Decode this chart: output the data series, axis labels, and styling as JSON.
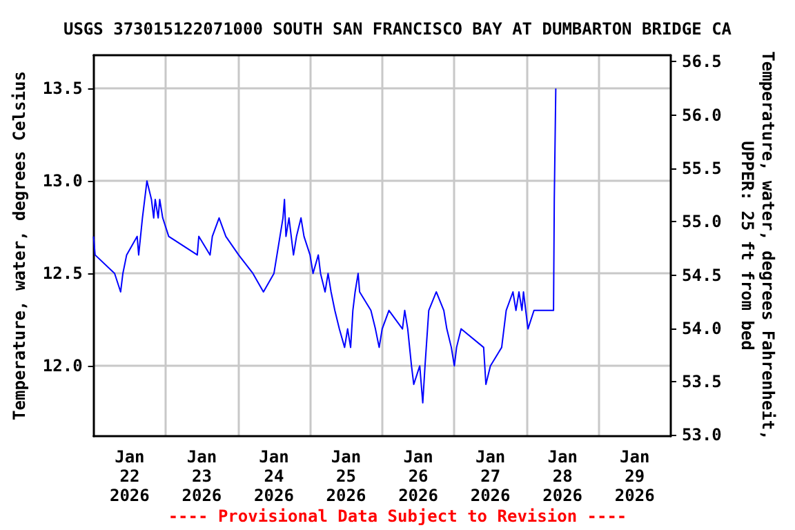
{
  "chart_data": {
    "type": "line",
    "title": "USGS 373015122071000 SOUTH SAN FRANCISCO BAY AT DUMBARTON BRIDGE CA",
    "ylabel": "Temperature, water, degrees Celsius",
    "y2label": "Temperature, water, degrees Fahrenheit,\nUPPER: 25 ft from bed",
    "annotations": [
      "---- Provisional Data Subject to Revision ----"
    ],
    "xlim": [
      "2026-01-22",
      "2026-01-30"
    ],
    "xticks": [
      {
        "value": "2026-01-22T12:00",
        "label": "Jan\n22\n2026"
      },
      {
        "value": "2026-01-23T12:00",
        "label": "Jan\n23\n2026"
      },
      {
        "value": "2026-01-24T12:00",
        "label": "Jan\n24\n2026"
      },
      {
        "value": "2026-01-25T12:00",
        "label": "Jan\n25\n2026"
      },
      {
        "value": "2026-01-26T12:00",
        "label": "Jan\n26\n2026"
      },
      {
        "value": "2026-01-27T12:00",
        "label": "Jan\n27\n2026"
      },
      {
        "value": "2026-01-28T12:00",
        "label": "Jan\n28\n2026"
      },
      {
        "value": "2026-01-29T12:00",
        "label": "Jan\n29\n2026"
      },
      {
        "value": "2026-01-23",
        "label": null
      },
      {
        "value": "2026-01-24",
        "label": null
      },
      {
        "value": "2026-01-25",
        "label": null
      },
      {
        "value": "2026-01-26",
        "label": null
      },
      {
        "value": "2026-01-27",
        "label": null
      },
      {
        "value": "2026-01-28",
        "label": null
      },
      {
        "value": "2026-01-29",
        "label": null
      }
    ],
    "ylim": [
      11.62,
      13.68
    ],
    "yticks": [
      {
        "value": 12,
        "label": "12.0"
      },
      12.5,
      {
        "value": 13,
        "label": "13.0"
      },
      13.5
    ],
    "y2lim": [
      52.99,
      56.56
    ],
    "y2ticks": [
      {
        "value": 53,
        "label": "53.0"
      },
      53.5,
      {
        "value": 54,
        "label": "54.0"
      },
      54.5,
      {
        "value": 55,
        "label": "55.0"
      },
      55.5,
      {
        "value": 56,
        "label": "56.0"
      },
      56.5
    ],
    "grid": true,
    "series": [
      {
        "color": "#0000ff",
        "x": [
          "2026-01-22T00:00",
          "2026-01-22T00:30",
          "2026-01-22T07:00",
          "2026-01-22T09:00",
          "2026-01-22T09:45",
          "2026-01-22T11:00",
          "2026-01-22T14:30",
          "2026-01-22T15:00",
          "2026-01-22T16:15",
          "2026-01-22T17:00",
          "2026-01-22T17:45",
          "2026-01-22T19:15",
          "2026-01-22T20:00",
          "2026-01-22T20:30",
          "2026-01-22T21:30",
          "2026-01-22T22:00",
          "2026-01-22T23:00",
          "2026-01-23T01:00",
          "2026-01-23T10:30",
          "2026-01-23T11:00",
          "2026-01-23T14:45",
          "2026-01-23T15:30",
          "2026-01-23T17:45",
          "2026-01-23T20:00",
          "2026-01-24T00:15",
          "2026-01-24T05:00",
          "2026-01-24T08:30",
          "2026-01-24T12:00",
          "2026-01-24T13:00",
          "2026-01-24T14:00",
          "2026-01-24T15:00",
          "2026-01-24T15:30",
          "2026-01-24T16:00",
          "2026-01-24T17:00",
          "2026-01-24T18:30",
          "2026-01-24T19:30",
          "2026-01-24T21:00",
          "2026-01-24T22:00",
          "2026-01-25T00:00",
          "2026-01-25T01:00",
          "2026-01-25T02:45",
          "2026-01-25T03:30",
          "2026-01-25T05:00",
          "2026-01-25T06:00",
          "2026-01-25T07:00",
          "2026-01-25T08:15",
          "2026-01-25T09:45",
          "2026-01-25T11:30",
          "2026-01-25T12:30",
          "2026-01-25T13:30",
          "2026-01-25T14:15",
          "2026-01-25T15:00",
          "2026-01-25T16:00",
          "2026-01-25T16:30",
          "2026-01-25T20:15",
          "2026-01-25T21:45",
          "2026-01-25T23:00",
          "2026-01-26T00:00",
          "2026-01-26T02:15",
          "2026-01-26T06:45",
          "2026-01-26T07:30",
          "2026-01-26T08:30",
          "2026-01-26T09:45",
          "2026-01-26T10:30",
          "2026-01-26T12:30",
          "2026-01-26T13:00",
          "2026-01-26T13:30",
          "2026-01-26T14:15",
          "2026-01-26T15:30",
          "2026-01-26T18:00",
          "2026-01-26T20:30",
          "2026-01-26T21:30",
          "2026-01-26T23:00",
          "2026-01-27T00:00",
          "2026-01-27T00:45",
          "2026-01-27T02:15",
          "2026-01-27T09:45",
          "2026-01-27T10:30",
          "2026-01-27T12:00",
          "2026-01-27T15:45",
          "2026-01-27T17:15",
          "2026-01-27T19:30",
          "2026-01-27T20:30",
          "2026-01-27T21:30",
          "2026-01-27T22:30",
          "2026-01-27T23:00",
          "2026-01-28T00:30",
          "2026-01-28T02:30",
          "2026-01-28T09:00",
          "2026-01-28T09:15",
          "2026-01-28T09:45"
        ],
        "values": [
          12.7,
          12.6,
          12.5,
          12.4,
          12.5,
          12.6,
          12.7,
          12.6,
          12.8,
          12.9,
          13.0,
          12.9,
          12.8,
          12.9,
          12.8,
          12.9,
          12.8,
          12.7,
          12.6,
          12.7,
          12.6,
          12.7,
          12.8,
          12.7,
          12.6,
          12.5,
          12.4,
          12.5,
          12.6,
          12.7,
          12.8,
          12.9,
          12.7,
          12.8,
          12.6,
          12.7,
          12.8,
          12.7,
          12.6,
          12.5,
          12.6,
          12.5,
          12.4,
          12.5,
          12.4,
          12.3,
          12.2,
          12.1,
          12.2,
          12.1,
          12.3,
          12.4,
          12.5,
          12.4,
          12.3,
          12.2,
          12.1,
          12.2,
          12.3,
          12.2,
          12.3,
          12.2,
          12.0,
          11.9,
          12.0,
          11.9,
          11.8,
          12.0,
          12.3,
          12.4,
          12.3,
          12.2,
          12.1,
          12.0,
          12.1,
          12.2,
          12.1,
          11.9,
          12.0,
          12.1,
          12.3,
          12.4,
          12.3,
          12.4,
          12.3,
          12.4,
          12.2,
          12.3,
          12.3,
          12.9,
          13.5
        ]
      }
    ]
  }
}
